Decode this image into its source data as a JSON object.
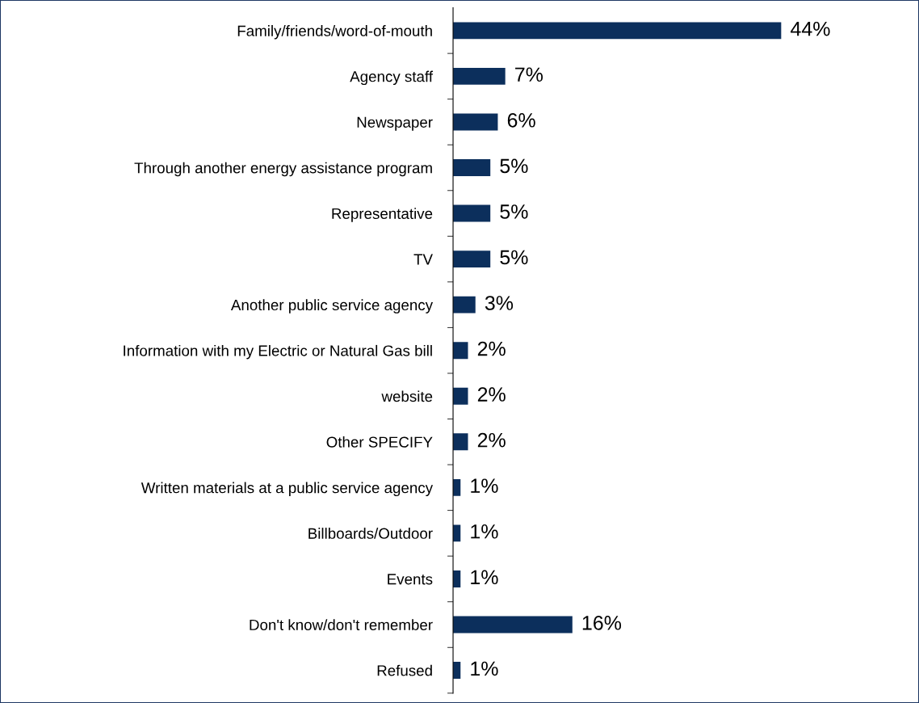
{
  "chart_data": {
    "type": "bar",
    "orientation": "horizontal",
    "categories": [
      "Family/friends/word-of-mouth",
      "Agency staff",
      "Newspaper",
      "Through another energy assistance program",
      "Representative",
      "TV",
      "Another public service agency",
      "Information with my Electric or Natural Gas bill",
      "website",
      "Other SPECIFY",
      "Written materials at a public service agency",
      "Billboards/Outdoor",
      "Events",
      "Don't know/don't remember",
      "Refused"
    ],
    "values": [
      44,
      7,
      6,
      5,
      5,
      5,
      3,
      2,
      2,
      2,
      1,
      1,
      1,
      16,
      1
    ],
    "value_labels": [
      "44%",
      "7%",
      "6%",
      "5%",
      "5%",
      "5%",
      "3%",
      "2%",
      "2%",
      "2%",
      "1%",
      "1%",
      "1%",
      "16%",
      "1%"
    ],
    "color": "#0c2f5c",
    "grid": false,
    "legend": false,
    "tick_labels": "y"
  }
}
